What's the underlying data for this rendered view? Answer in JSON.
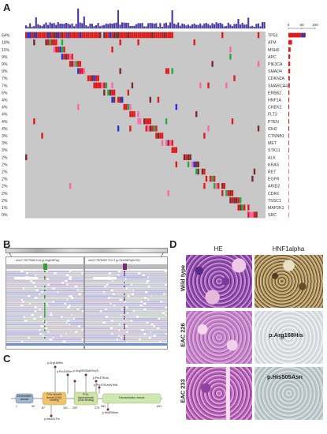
{
  "panels": {
    "a": "A",
    "b": "B",
    "c": "C",
    "d": "D"
  },
  "chart_data": {
    "type": "heatmap",
    "genes": [
      "TP53",
      "ATM",
      "MSH6",
      "APC",
      "PIK3CA",
      "SMAD4",
      "CDKN2A",
      "SMARCA4",
      "ERBB2",
      "HNF1A",
      "CHEK2",
      "FLT3",
      "PTEN",
      "IDH2",
      "CTNNB1",
      "MET",
      "STK11",
      "ALK",
      "KRAS",
      "RET",
      "EGFR",
      "ARID2",
      "CDK6",
      "TSSC1",
      "MAP2K1",
      "SRC"
    ],
    "percents": [
      "64%",
      "18%",
      "11%",
      "9%",
      "9%",
      "9%",
      "7%",
      "7%",
      "5%",
      "4%",
      "4%",
      "4%",
      "4%",
      "4%",
      "3%",
      "3%",
      "3%",
      "2%",
      "2%",
      "2%",
      "2%",
      "2%",
      "2%",
      "2%",
      "1%",
      "0%"
    ],
    "freq_axis_ticks": [
      "0",
      "50",
      "100"
    ],
    "colors": {
      "background": "#c8c8c8",
      "missense": "#22aa44",
      "truncating": "#e01a1a",
      "frameshift": "#2233dd",
      "inframe": "#7a2a2a",
      "other": "#ff66aa",
      "top_bars": "#4a3aa8"
    }
  },
  "igv": {
    "left_locus": "chr17:7577538 G>A (p.Arg248Trp)",
    "right_locus": "chr17:7578402 TG>T (p.Ser168Trpfs*20)"
  },
  "lollipop": {
    "mutations_above": [
      "p.Arg168His",
      "p.Arg252GlyfsTer25",
      "p.Pro379Leu",
      "p.Pro379LeufsTer8",
      "p.Pro139Ser"
    ],
    "mutations_below": [
      "p.Ala161Thr",
      "p.His505Asn"
    ],
    "domains": [
      {
        "label": "Dimerization domain",
        "start": "1",
        "end": "32"
      },
      {
        "label": "POU-Specific domain (DNA-binding)",
        "start": "87",
        "end": "181"
      },
      {
        "label": "POU-homeodomain (DNA-binding)",
        "start": "203",
        "end": "279"
      },
      {
        "label": "Transactivation domain",
        "start": "281",
        "end": "631"
      }
    ]
  },
  "ihc": {
    "col_he": "HE",
    "col_hnf": "HNF1alpha",
    "rows": [
      "Wild type",
      "EAC 226",
      "EAC 233"
    ],
    "labels": [
      "p.Arg168His",
      "p.His505Asn"
    ]
  }
}
